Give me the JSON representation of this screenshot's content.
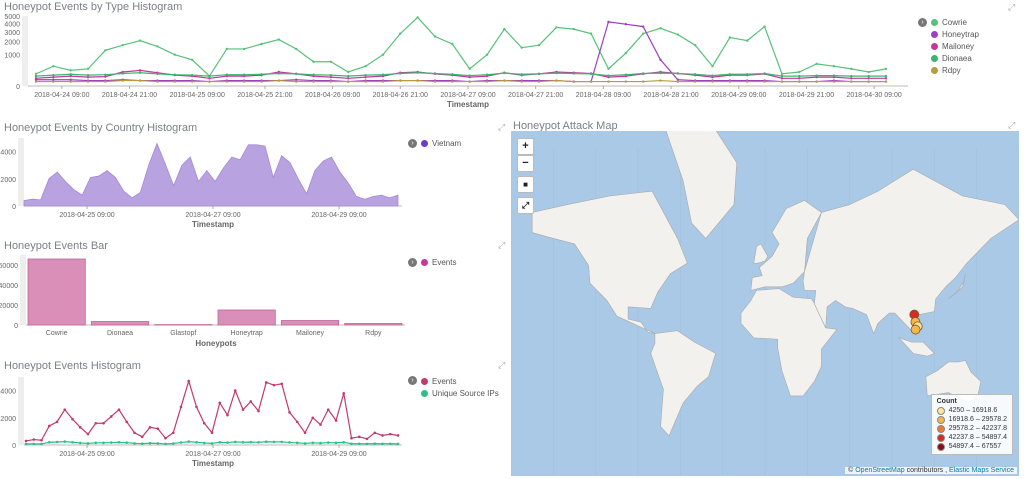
{
  "panels": {
    "type_hist": {
      "title": "Honeypot Events by Type Histogram",
      "xlabel": "Timestamp",
      "yticks": [
        "5000",
        "4000",
        "3000",
        "2000",
        "1000",
        "0"
      ],
      "xticks": [
        "2018-04-24 09:00",
        "2018-04-24 21:00",
        "2018-04-25 09:00",
        "2018-04-25 21:00",
        "2018-04-26 09:00",
        "2018-04-26 21:00",
        "2018-04-27 09:00",
        "2018-04-27 21:00",
        "2018-04-28 09:00",
        "2018-04-28 21:00",
        "2018-04-29 09:00",
        "2018-04-29 21:00",
        "2018-04-30 09:00"
      ],
      "legend": [
        {
          "label": "Cowrie",
          "color": "#57c17b"
        },
        {
          "label": "Honeytrap",
          "color": "#9b3fc4"
        },
        {
          "label": "Mailoney",
          "color": "#c2399b"
        },
        {
          "label": "Dionaea",
          "color": "#3db370"
        },
        {
          "label": "Rdpy",
          "color": "#b89b3a"
        }
      ]
    },
    "country_hist": {
      "title": "Honeypot Events by Country Histogram",
      "xlabel": "Timestamp",
      "yticks": [
        "4000",
        "2000",
        "0"
      ],
      "xticks": [
        "2018-04-25 09:00",
        "2018-04-27 09:00",
        "2018-04-29 09:00"
      ],
      "legend": [
        {
          "label": "Vietnam",
          "color": "#6a3fc4"
        }
      ]
    },
    "events_bar": {
      "title": "Honeypot Events Bar",
      "xlabel": "Honeypots",
      "yticks": [
        "60000",
        "40000",
        "20000",
        "0"
      ],
      "legend": [
        {
          "label": "Events",
          "color": "#c2399b"
        }
      ]
    },
    "events_hist": {
      "title": "Honeypot Events Histogram",
      "xlabel": "Timestamp",
      "yticks": [
        "4000",
        "2000",
        "0"
      ],
      "xticks": [
        "2018-04-25 09:00",
        "2018-04-27 09:00",
        "2018-04-29 09:00"
      ],
      "legend": [
        {
          "label": "Events",
          "color": "#c2396b"
        },
        {
          "label": "Unique Source IPs",
          "color": "#27c28a"
        }
      ]
    },
    "attack_map": {
      "title": "Honeypot Attack Map",
      "buttons": {
        "zoom_in": "+",
        "zoom_out": "−",
        "draw": "■",
        "fit": "⤢"
      },
      "legend_title": "Count",
      "legend": [
        {
          "label": "4250 – 16918.6",
          "color": "#fde69a"
        },
        {
          "label": "16918.6 – 29578.2",
          "color": "#f5b74a"
        },
        {
          "label": "29578.2 – 42237.8",
          "color": "#ef7a2b"
        },
        {
          "label": "42237.8 – 54897.4",
          "color": "#d62a22"
        },
        {
          "label": "54897.4 – 67557",
          "color": "#8e0b1d"
        }
      ],
      "attribution_prefix": "©",
      "osm": "OpenStreetMap",
      "contributors": "contributors ,",
      "ems": "Elastic Maps Service"
    }
  },
  "chart_data": [
    {
      "type": "line",
      "title": "Honeypot Events by Type Histogram",
      "xlabel": "Timestamp",
      "ylim": [
        0,
        5000
      ],
      "series": [
        {
          "name": "Cowrie",
          "values": [
            150,
            400,
            250,
            300,
            1300,
            1700,
            2100,
            1600,
            1000,
            700,
            100,
            1400,
            1400,
            1800,
            2200,
            1400,
            600,
            600,
            200,
            400,
            1000,
            2800,
            4800,
            2500,
            1800,
            300,
            1000,
            3300,
            1500,
            1700,
            3500,
            3300,
            2800,
            300,
            1100,
            2800,
            3400,
            2700,
            1700,
            400,
            2400,
            2100,
            3600,
            150,
            200,
            500,
            400,
            300,
            200,
            300
          ]
        },
        {
          "name": "Honeytrap",
          "values": [
            40,
            40,
            40,
            30,
            30,
            40,
            30,
            30,
            30,
            30,
            20,
            30,
            30,
            30,
            30,
            40,
            30,
            30,
            20,
            30,
            30,
            30,
            30,
            30,
            30,
            20,
            30,
            30,
            30,
            30,
            30,
            20,
            20,
            4200,
            3900,
            3600,
            700,
            40,
            30,
            30,
            30,
            30,
            30,
            20,
            20,
            20,
            30,
            20,
            20,
            20
          ]
        },
        {
          "name": "Mailoney",
          "values": [
            60,
            80,
            100,
            80,
            90,
            200,
            250,
            180,
            120,
            100,
            60,
            100,
            100,
            120,
            200,
            150,
            100,
            80,
            60,
            80,
            100,
            180,
            200,
            150,
            120,
            80,
            100,
            180,
            120,
            150,
            200,
            180,
            160,
            80,
            100,
            150,
            200,
            160,
            120,
            80,
            120,
            120,
            150,
            60,
            60,
            80,
            80,
            60,
            60,
            60
          ]
        },
        {
          "name": "Dionaea",
          "values": [
            100,
            120,
            140,
            120,
            130,
            160,
            180,
            150,
            130,
            120,
            100,
            130,
            130,
            140,
            160,
            150,
            130,
            120,
            100,
            120,
            130,
            160,
            180,
            160,
            140,
            110,
            130,
            170,
            140,
            150,
            170,
            160,
            150,
            110,
            130,
            160,
            170,
            160,
            140,
            110,
            140,
            140,
            160,
            100,
            100,
            110,
            110,
            100,
            100,
            100
          ]
        },
        {
          "name": "Rdpy",
          "values": [
            20,
            20,
            20,
            20,
            20,
            30,
            30,
            20,
            20,
            20,
            20,
            20,
            20,
            20,
            30,
            20,
            20,
            20,
            20,
            20,
            20,
            30,
            30,
            20,
            20,
            20,
            20,
            30,
            20,
            20,
            30,
            20,
            20,
            20,
            20,
            20,
            30,
            20,
            20,
            20,
            20,
            20,
            20,
            20,
            20,
            20,
            20,
            20,
            20,
            20
          ]
        }
      ]
    },
    {
      "type": "area",
      "title": "Honeypot Events by Country Histogram",
      "xlabel": "Timestamp",
      "ylim": [
        0,
        5000
      ],
      "series": [
        {
          "name": "Vietnam",
          "values": [
            400,
            500,
            450,
            2000,
            2500,
            1800,
            1200,
            800,
            2100,
            2200,
            2600,
            2100,
            1100,
            600,
            1000,
            3000,
            4600,
            3100,
            1500,
            3000,
            3600,
            1800,
            2600,
            1800,
            2800,
            3600,
            3400,
            4500,
            4500,
            4400,
            2100,
            3700,
            3200,
            2000,
            900,
            2600,
            3300,
            3600,
            2500,
            1700,
            700,
            500,
            700,
            800,
            600,
            800
          ]
        }
      ]
    },
    {
      "type": "bar",
      "title": "Honeypot Events Bar",
      "xlabel": "Honeypots",
      "categories": [
        "Cowrie",
        "Dionaea",
        "Glastopf",
        "Honeytrap",
        "Mailoney",
        "Rdpy"
      ],
      "series": [
        {
          "name": "Events",
          "values": [
            66000,
            3500,
            400,
            15000,
            4500,
            1500
          ]
        }
      ],
      "ylim": [
        0,
        70000
      ]
    },
    {
      "type": "line",
      "title": "Honeypot Events Histogram",
      "xlabel": "Timestamp",
      "ylim": [
        0,
        5000
      ],
      "series": [
        {
          "name": "Events",
          "values": [
            300,
            400,
            350,
            1400,
            1700,
            2600,
            1900,
            1300,
            800,
            1600,
            1600,
            2100,
            2600,
            1700,
            900,
            600,
            1300,
            1200,
            500,
            900,
            2800,
            4700,
            2800,
            1600,
            900,
            3100,
            2200,
            4000,
            2600,
            3200,
            2500,
            4600,
            4400,
            4500,
            2400,
            1700,
            900,
            2000,
            1500,
            2600,
            1800,
            3800,
            500,
            600,
            450,
            900,
            700,
            800,
            700
          ]
        },
        {
          "name": "Unique Source IPs",
          "values": [
            80,
            80,
            80,
            200,
            220,
            250,
            200,
            150,
            120,
            160,
            160,
            180,
            200,
            170,
            120,
            100,
            130,
            120,
            80,
            110,
            180,
            250,
            200,
            150,
            120,
            200,
            180,
            230,
            200,
            210,
            200,
            240,
            230,
            230,
            190,
            160,
            120,
            160,
            140,
            180,
            160,
            200,
            90,
            90,
            80,
            100,
            90,
            90,
            80
          ]
        }
      ]
    }
  ],
  "map_points": [
    {
      "lon": 105.8,
      "lat": 21.0,
      "color": "#d62a22"
    },
    {
      "lon": 106.6,
      "lat": 16.0,
      "color": "#f5b74a"
    },
    {
      "lon": 108.2,
      "lat": 13.0,
      "color": "#fde69a"
    },
    {
      "lon": 106.7,
      "lat": 10.8,
      "color": "#f5b74a"
    }
  ]
}
